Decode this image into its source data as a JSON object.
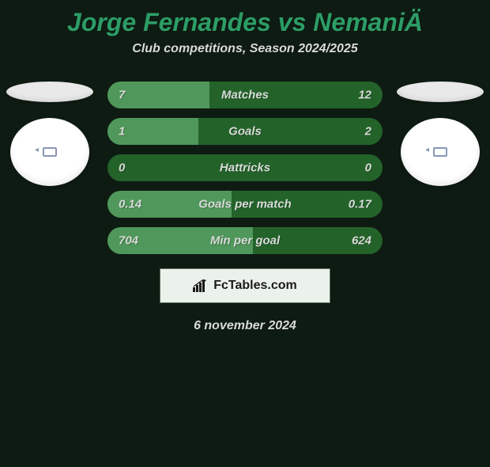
{
  "background_color": "#0e1b12",
  "title": {
    "text": "Jorge Fernandes vs NemaniÄ",
    "color": "#2c9d66",
    "fontsize": 32
  },
  "subtitle": {
    "text": "Club competitions, Season 2024/2025",
    "color": "#d8dbd8",
    "fontsize": 16
  },
  "left_avatar": {
    "ellipse_color": "#e9e9e9",
    "circle_color": "#ffffff",
    "inner_border": "#8a97b5"
  },
  "right_avatar": {
    "ellipse_color": "#e9e9e9",
    "circle_color": "#ffffff",
    "inner_border": "#8a97b5"
  },
  "bars": {
    "bg_color": "#23632a",
    "fill_color": "#50975b",
    "text_color": "#d7dbd7",
    "height": 34,
    "radius": 17,
    "items": [
      {
        "left": "7",
        "right": "12",
        "label": "Matches",
        "fill_pct": 37
      },
      {
        "left": "1",
        "right": "2",
        "label": "Goals",
        "fill_pct": 33
      },
      {
        "left": "0",
        "right": "0",
        "label": "Hattricks",
        "fill_pct": 0
      },
      {
        "left": "0.14",
        "right": "0.17",
        "label": "Goals per match",
        "fill_pct": 45
      },
      {
        "left": "704",
        "right": "624",
        "label": "Min per goal",
        "fill_pct": 53
      }
    ]
  },
  "brand": {
    "text": "FcTables.com",
    "box_bg": "#ebf2eb",
    "box_border": "#5e715f",
    "text_color": "#1a1a1a"
  },
  "date": {
    "text": "6 november 2024",
    "color": "#d8dbd8"
  }
}
